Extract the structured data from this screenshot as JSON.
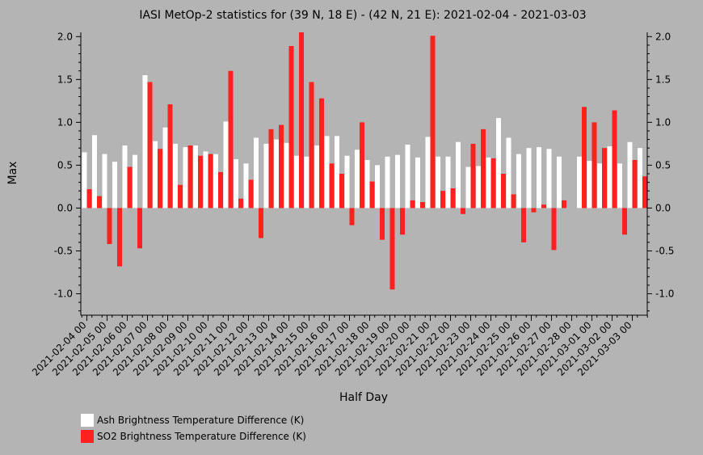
{
  "chart_data": {
    "type": "bar",
    "title": "IASI MetOp-2 statistics for (39 N, 18 E) - (42 N, 21 E): 2021-02-04 - 2021-03-03",
    "xlabel": "Half Day",
    "ylabel": "Max",
    "ylim": [
      -1.25,
      2.05
    ],
    "yticks": [
      "2.0",
      "1.5",
      "1.0",
      "0.5",
      "0.0",
      "-0.5",
      "-1.0"
    ],
    "ytick_values": [
      2.0,
      1.5,
      1.0,
      0.5,
      0.0,
      -0.5,
      -1.0
    ],
    "x_tick_labels": [
      "2021-02-04 00",
      "2021-02-05 00",
      "2021-02-06 00",
      "2021-02-07 00",
      "2021-02-08 00",
      "2021-02-09 00",
      "2021-02-10 00",
      "2021-02-11 00",
      "2021-02-12 00",
      "2021-02-13 00",
      "2021-02-14 00",
      "2021-02-15 00",
      "2021-02-16 00",
      "2021-02-17 00",
      "2021-02-18 00",
      "2021-02-19 00",
      "2021-02-20 00",
      "2021-02-21 00",
      "2021-02-22 00",
      "2021-02-23 00",
      "2021-02-24 00",
      "2021-02-25 00",
      "2021-02-26 00",
      "2021-02-27 00",
      "2021-02-28 00",
      "2021-03-01 00",
      "2021-03-02 00",
      "2021-03-03 00"
    ],
    "grid": false,
    "legend_position": "bottom-left",
    "series": [
      {
        "name": "Ash Brightness Temperature Difference (K)",
        "color": "#ffffff",
        "values": [
          0.65,
          0.85,
          0.63,
          0.54,
          0.73,
          0.62,
          1.55,
          0.78,
          0.94,
          0.75,
          0.71,
          0.73,
          0.66,
          0.63,
          1.01,
          0.57,
          0.52,
          0.82,
          0.75,
          0.8,
          0.76,
          0.61,
          0.6,
          0.73,
          0.84,
          0.84,
          0.61,
          0.68,
          0.56,
          0.5,
          0.6,
          0.62,
          0.74,
          0.59,
          0.83,
          0.6,
          0.6,
          0.77,
          0.48,
          0.49,
          0.59,
          1.05,
          0.82,
          0.63,
          0.7,
          0.71,
          0.69,
          0.6,
          null,
          0.6,
          0.55,
          0.52,
          0.72,
          0.52,
          0.77,
          0.7
        ]
      },
      {
        "name": "SO2 Brightness Temperature Difference (K)",
        "color": "#ff2020",
        "values": [
          0.22,
          0.14,
          -0.42,
          -0.68,
          0.48,
          -0.47,
          1.47,
          0.69,
          1.21,
          0.27,
          0.73,
          0.61,
          0.63,
          0.42,
          1.6,
          0.11,
          0.33,
          -0.35,
          0.92,
          0.97,
          1.89,
          2.05,
          1.47,
          1.28,
          0.52,
          0.4,
          -0.2,
          1.0,
          0.31,
          -0.37,
          -0.95,
          -0.31,
          0.09,
          0.07,
          2.01,
          0.2,
          0.23,
          -0.07,
          0.75,
          0.92,
          0.58,
          0.4,
          0.16,
          -0.4,
          -0.05,
          0.04,
          -0.49,
          0.09,
          null,
          1.18,
          1.0,
          0.7,
          1.14,
          -0.31,
          0.56,
          0.37
        ]
      }
    ]
  }
}
